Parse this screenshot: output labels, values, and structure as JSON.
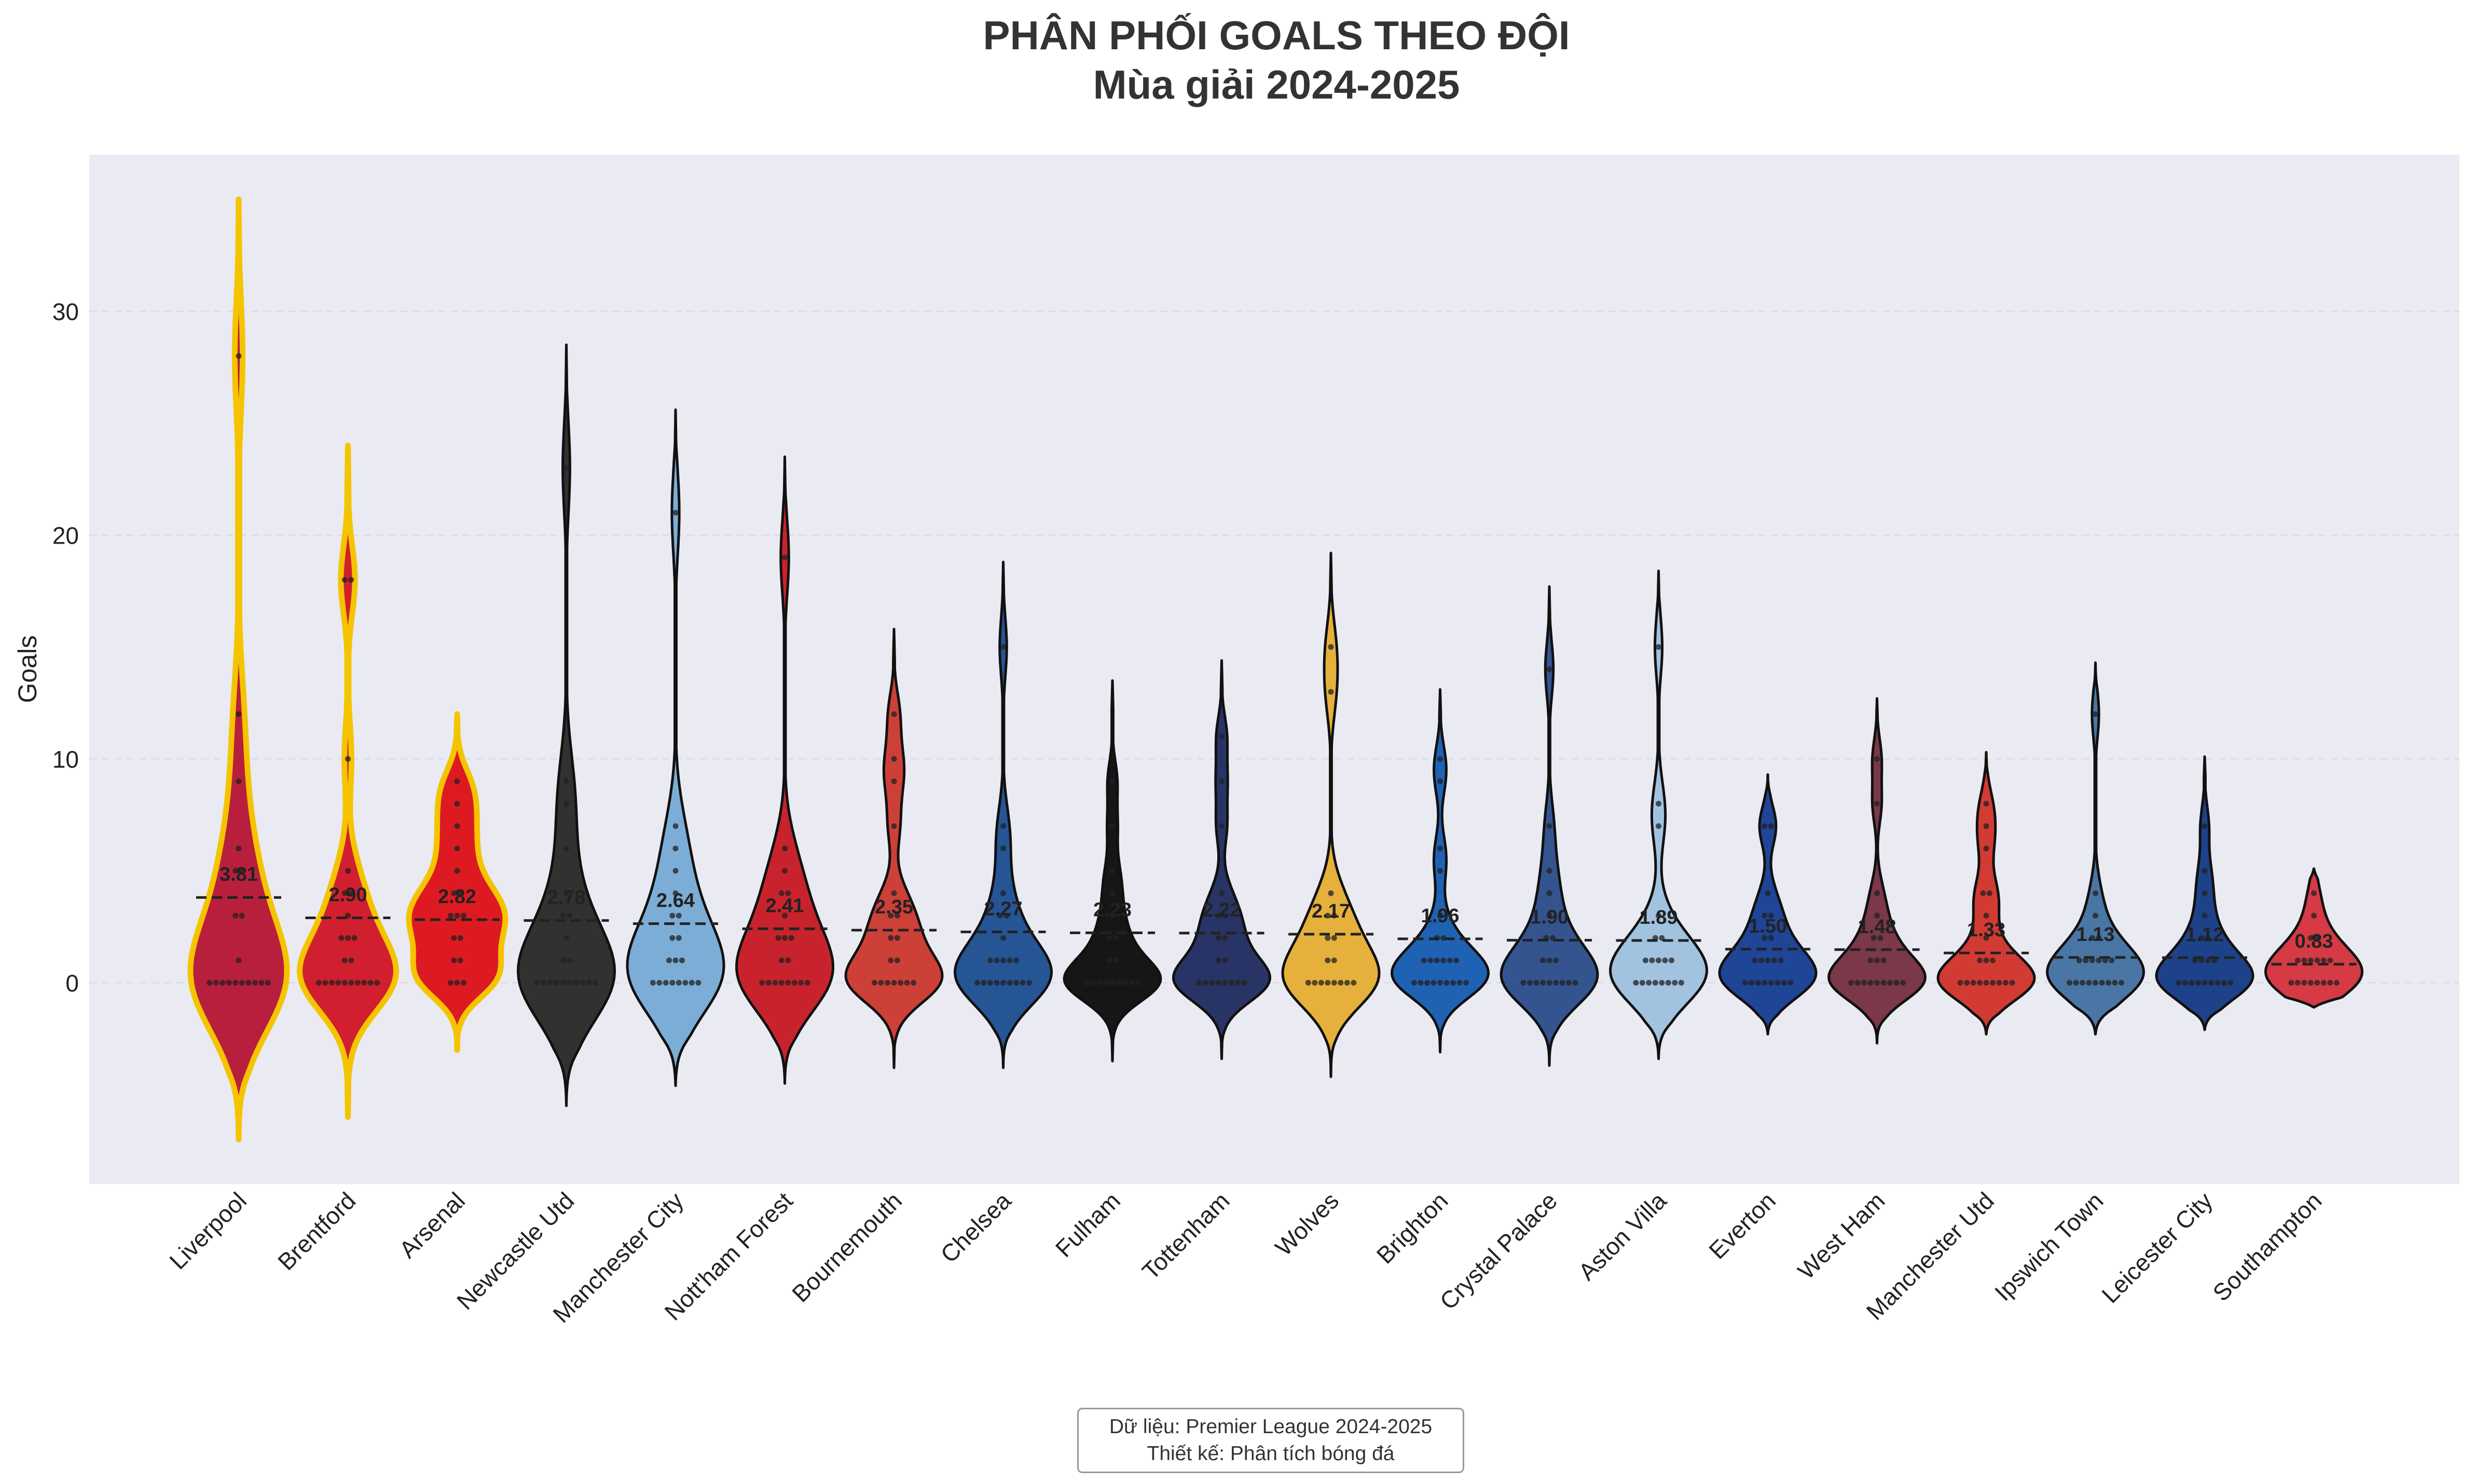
{
  "chart_data": {
    "type": "violin",
    "title": "PHÂN PHỐI GOALS THEO ĐỘI",
    "subtitle": "Mùa giải 2024-2025",
    "ylabel": "Goals",
    "xlabel": "",
    "ylim": [
      -9,
      37
    ],
    "yticks": [
      0,
      10,
      20,
      30
    ],
    "grid": true,
    "series": [
      {
        "team": "Liverpool",
        "mean": 3.81,
        "mean_label": "3.81",
        "min": -7,
        "max": 35,
        "color": "#b71f3d",
        "outline": "#f5c400",
        "points": [
          0,
          0,
          0,
          0,
          0,
          0,
          0,
          0,
          0,
          0,
          1,
          3,
          3,
          5,
          5,
          6,
          9,
          12,
          28
        ]
      },
      {
        "team": "Brentford",
        "mean": 2.9,
        "mean_label": "2.90",
        "min": -6,
        "max": 24,
        "color": "#d11f2f",
        "outline": "#f5c400",
        "points": [
          0,
          0,
          0,
          0,
          0,
          0,
          0,
          0,
          0,
          0,
          1,
          1,
          2,
          2,
          2,
          3,
          4,
          4,
          5,
          10,
          18,
          18
        ]
      },
      {
        "team": "Arsenal",
        "mean": 2.82,
        "mean_label": "2.82",
        "min": -3,
        "max": 12,
        "color": "#dd1a22",
        "outline": "#f5c400",
        "points": [
          0,
          0,
          0,
          1,
          1,
          2,
          2,
          3,
          3,
          3,
          4,
          4,
          5,
          6,
          7,
          8,
          9
        ]
      },
      {
        "team": "Newcastle Utd",
        "mean": 2.78,
        "mean_label": "2.78",
        "min": -5.5,
        "max": 28.5,
        "color": "#333030",
        "outline": "#111111",
        "points": [
          0,
          0,
          0,
          0,
          0,
          0,
          0,
          0,
          0,
          0,
          1,
          1,
          2,
          3,
          3,
          4,
          6,
          8,
          9,
          23
        ]
      },
      {
        "team": "Manchester City",
        "mean": 2.64,
        "mean_label": "2.64",
        "min": -4.6,
        "max": 25.6,
        "color": "#7cadd6",
        "outline": "#111111",
        "points": [
          0,
          0,
          0,
          0,
          0,
          0,
          0,
          0,
          1,
          1,
          1,
          2,
          2,
          3,
          3,
          4,
          5,
          6,
          7,
          21
        ]
      },
      {
        "team": "Nott'ham Forest",
        "mean": 2.41,
        "mean_label": "2.41",
        "min": -4.5,
        "max": 23.5,
        "color": "#c8232c",
        "outline": "#111111",
        "points": [
          0,
          0,
          0,
          0,
          0,
          0,
          0,
          0,
          1,
          1,
          2,
          2,
          2,
          3,
          4,
          4,
          5,
          6,
          19
        ]
      },
      {
        "team": "Bournemouth",
        "mean": 2.35,
        "mean_label": "2.35",
        "min": -3.8,
        "max": 15.8,
        "color": "#cc4038",
        "outline": "#111111",
        "points": [
          0,
          0,
          0,
          0,
          0,
          0,
          0,
          1,
          1,
          2,
          2,
          3,
          3,
          4,
          7,
          9,
          10,
          12
        ]
      },
      {
        "team": "Chelsea",
        "mean": 2.27,
        "mean_label": "2.27",
        "min": -3.8,
        "max": 18.8,
        "color": "#265596",
        "outline": "#111111",
        "points": [
          0,
          0,
          0,
          0,
          0,
          0,
          0,
          0,
          0,
          1,
          1,
          1,
          1,
          1,
          2,
          3,
          3,
          4,
          6,
          7,
          15
        ]
      },
      {
        "team": "Fulham",
        "mean": 2.23,
        "mean_label": "2.23",
        "min": -3.5,
        "max": 13.5,
        "color": "#161616",
        "outline": "#111111",
        "points": [
          0,
          0,
          0,
          0,
          0,
          0,
          0,
          0,
          0,
          1,
          1,
          2,
          2,
          3,
          4,
          5,
          7,
          9
        ]
      },
      {
        "team": "Tottenham",
        "mean": 2.22,
        "mean_label": "2.22",
        "min": -3.4,
        "max": 14.4,
        "color": "#283465",
        "outline": "#111111",
        "points": [
          0,
          0,
          0,
          0,
          0,
          0,
          0,
          0,
          1,
          1,
          2,
          2,
          3,
          3,
          4,
          7,
          9,
          11
        ]
      },
      {
        "team": "Wolves",
        "mean": 2.17,
        "mean_label": "2.17",
        "min": -4.2,
        "max": 19.2,
        "color": "#e5b13c",
        "outline": "#111111",
        "points": [
          0,
          0,
          0,
          0,
          0,
          0,
          0,
          0,
          1,
          1,
          2,
          2,
          3,
          3,
          4,
          13,
          15
        ]
      },
      {
        "team": "Brighton",
        "mean": 1.96,
        "mean_label": "1.96",
        "min": -3.1,
        "max": 13.1,
        "color": "#1f62b3",
        "outline": "#111111",
        "points": [
          0,
          0,
          0,
          0,
          0,
          0,
          0,
          0,
          0,
          1,
          1,
          1,
          1,
          1,
          1,
          2,
          2,
          3,
          5,
          6,
          9,
          10
        ]
      },
      {
        "team": "Crystal Palace",
        "mean": 1.9,
        "mean_label": "1.90",
        "min": -3.7,
        "max": 17.7,
        "color": "#345490",
        "outline": "#111111",
        "points": [
          0,
          0,
          0,
          0,
          0,
          0,
          0,
          0,
          0,
          1,
          1,
          1,
          2,
          2,
          3,
          4,
          5,
          7,
          14
        ]
      },
      {
        "team": "Aston Villa",
        "mean": 1.89,
        "mean_label": "1.89",
        "min": -3.4,
        "max": 18.4,
        "color": "#a1c3e0",
        "outline": "#111111",
        "points": [
          0,
          0,
          0,
          0,
          0,
          0,
          0,
          0,
          1,
          1,
          1,
          1,
          1,
          2,
          2,
          3,
          7,
          8,
          15
        ]
      },
      {
        "team": "Everton",
        "mean": 1.5,
        "mean_label": "1.50",
        "min": -2.3,
        "max": 9.3,
        "color": "#1f4596",
        "outline": "#111111",
        "points": [
          0,
          0,
          0,
          0,
          0,
          0,
          0,
          0,
          1,
          1,
          1,
          1,
          1,
          2,
          2,
          3,
          3,
          4,
          7,
          7
        ]
      },
      {
        "team": "West Ham",
        "mean": 1.48,
        "mean_label": "1.48",
        "min": -2.7,
        "max": 12.7,
        "color": "#7a3849",
        "outline": "#111111",
        "points": [
          0,
          0,
          0,
          0,
          0,
          0,
          0,
          0,
          0,
          1,
          1,
          1,
          2,
          2,
          3,
          4,
          8,
          10
        ]
      },
      {
        "team": "Manchester Utd",
        "mean": 1.33,
        "mean_label": "1.33",
        "min": -2.3,
        "max": 10.3,
        "color": "#d13b33",
        "outline": "#111111",
        "points": [
          0,
          0,
          0,
          0,
          0,
          0,
          0,
          0,
          0,
          1,
          1,
          1,
          2,
          3,
          4,
          4,
          6,
          7,
          8
        ]
      },
      {
        "team": "Ipswich Town",
        "mean": 1.13,
        "mean_label": "1.13",
        "min": -2.3,
        "max": 14.3,
        "color": "#4a76a5",
        "outline": "#111111",
        "points": [
          0,
          0,
          0,
          0,
          0,
          0,
          0,
          0,
          0,
          1,
          1,
          1,
          1,
          1,
          1,
          2,
          2,
          3,
          4,
          12
        ]
      },
      {
        "team": "Leicester City",
        "mean": 1.12,
        "mean_label": "1.12",
        "min": -2.1,
        "max": 10.1,
        "color": "#1d4289",
        "outline": "#111111",
        "points": [
          0,
          0,
          0,
          0,
          0,
          0,
          0,
          0,
          0,
          1,
          1,
          1,
          1,
          2,
          2,
          3,
          4,
          5,
          7
        ]
      },
      {
        "team": "Southampton",
        "mean": 0.83,
        "mean_label": "0.83",
        "min": -1.1,
        "max": 5.1,
        "color": "#d53a45",
        "outline": "#111111",
        "points": [
          0,
          0,
          0,
          0,
          0,
          0,
          0,
          0,
          1,
          1,
          1,
          1,
          1,
          1,
          2,
          2,
          3,
          4
        ]
      }
    ]
  },
  "footer": {
    "line1": "Dữ liệu: Premier League 2024-2025",
    "line2": "Thiết kế: Phân tích bóng đá"
  },
  "colors": {
    "plot_background": "#eaeaf2",
    "grid": "#ffffff"
  }
}
